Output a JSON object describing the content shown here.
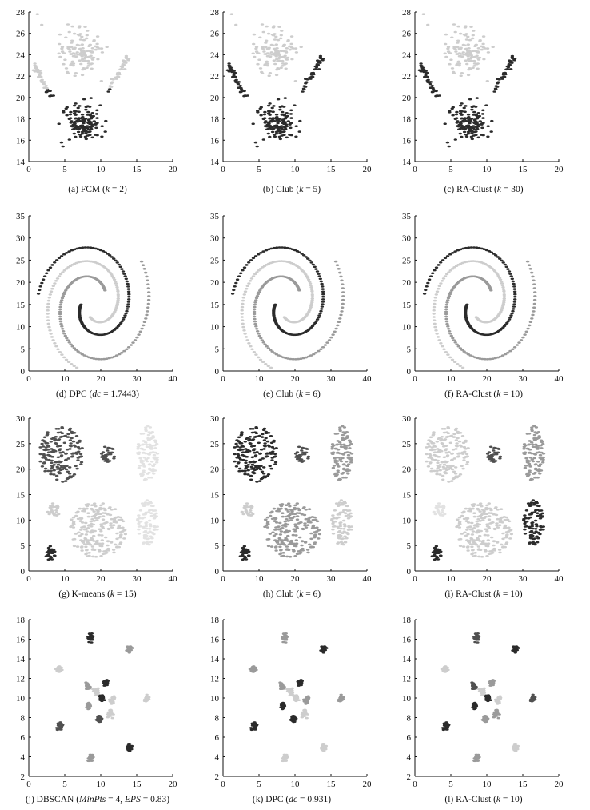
{
  "colors": {
    "black": "#2b2b2b",
    "dark": "#505050",
    "mid": "#9a9a9a",
    "light": "#cdcdcd",
    "lighter": "#e2e2e2",
    "axis": "#111111"
  },
  "chart_data": [
    {
      "id": "a",
      "type": "scatter",
      "caption": "(a) FCM (k = 2)",
      "caption_parts": [
        "(a) FCM (",
        "k",
        " = 2)"
      ],
      "xlim": [
        0,
        20
      ],
      "ylim": [
        14,
        28
      ],
      "xticks": [
        0,
        5,
        10,
        15,
        20
      ],
      "yticks": [
        14,
        16,
        18,
        20,
        22,
        24,
        26,
        28
      ],
      "dataset": "flame",
      "scheme": "fcm",
      "cluster_colors": [
        "light",
        "black"
      ]
    },
    {
      "id": "b",
      "type": "scatter",
      "caption": "(b) Club (k = 5)",
      "caption_parts": [
        "(b) Club (",
        "k",
        " = 5)"
      ],
      "xlim": [
        0,
        20
      ],
      "ylim": [
        14,
        28
      ],
      "xticks": [
        0,
        5,
        10,
        15,
        20
      ],
      "yticks": [
        14,
        16,
        18,
        20,
        22,
        24,
        26,
        28
      ],
      "dataset": "flame",
      "scheme": "true",
      "cluster_colors": [
        "light",
        "black"
      ]
    },
    {
      "id": "c",
      "type": "scatter",
      "caption": "(c) RA-Clust (k = 30)",
      "caption_parts": [
        "(c) RA-Clust (",
        "k",
        " = 30)"
      ],
      "xlim": [
        0,
        20
      ],
      "ylim": [
        14,
        28
      ],
      "xticks": [
        0,
        5,
        10,
        15,
        20
      ],
      "yticks": [
        14,
        16,
        18,
        20,
        22,
        24,
        26,
        28
      ],
      "dataset": "flame",
      "scheme": "true",
      "cluster_colors": [
        "light",
        "black"
      ]
    },
    {
      "id": "d",
      "type": "scatter",
      "caption": "(d) DPC (dc = 1.7443)",
      "caption_parts": [
        "(d) DPC (",
        "dc",
        " = 1.7443)"
      ],
      "xlim": [
        0,
        40
      ],
      "ylim": [
        0,
        35
      ],
      "xticks": [
        0,
        10,
        20,
        30,
        40
      ],
      "yticks": [
        0,
        5,
        10,
        15,
        20,
        25,
        30,
        35
      ],
      "dataset": "spiral",
      "scheme": "dpc",
      "cluster_colors": [
        "black",
        "mid",
        "light"
      ]
    },
    {
      "id": "e",
      "type": "scatter",
      "caption": "(e) Club (k = 6)",
      "caption_parts": [
        "(e) Club (",
        "k",
        " = 6)"
      ],
      "xlim": [
        0,
        40
      ],
      "ylim": [
        0,
        35
      ],
      "xticks": [
        0,
        10,
        20,
        30,
        40
      ],
      "yticks": [
        0,
        5,
        10,
        15,
        20,
        25,
        30,
        35
      ],
      "dataset": "spiral",
      "scheme": "true",
      "cluster_colors": [
        "black",
        "mid",
        "light"
      ]
    },
    {
      "id": "f",
      "type": "scatter",
      "caption": "(f) RA-Clust (k = 10)",
      "caption_parts": [
        "(f) RA-Clust (",
        "k",
        " = 10)"
      ],
      "xlim": [
        0,
        40
      ],
      "ylim": [
        0,
        35
      ],
      "xticks": [
        0,
        10,
        20,
        30,
        40
      ],
      "yticks": [
        0,
        5,
        10,
        15,
        20,
        25,
        30,
        35
      ],
      "dataset": "spiral",
      "scheme": "true",
      "cluster_colors": [
        "black",
        "mid",
        "light"
      ]
    },
    {
      "id": "g",
      "type": "scatter",
      "caption": "(g) K-means (k = 15)",
      "caption_parts": [
        "(g) K-means (",
        "k",
        " = 15)"
      ],
      "xlim": [
        0,
        40
      ],
      "ylim": [
        0,
        30
      ],
      "xticks": [
        0,
        10,
        20,
        30,
        40
      ],
      "yticks": [
        0,
        5,
        10,
        15,
        20,
        25,
        30
      ],
      "dataset": "compound",
      "scheme": "kmeans",
      "cluster_colors": [
        "dark",
        "dark",
        "lighter",
        "lighter",
        "light",
        "light",
        "black"
      ]
    },
    {
      "id": "h",
      "type": "scatter",
      "caption": "(h) Club (k = 6)",
      "caption_parts": [
        "(h) Club (",
        "k",
        " = 6)"
      ],
      "xlim": [
        0,
        40
      ],
      "ylim": [
        0,
        30
      ],
      "xticks": [
        0,
        10,
        20,
        30,
        40
      ],
      "yticks": [
        0,
        5,
        10,
        15,
        20,
        25,
        30
      ],
      "dataset": "compound",
      "scheme": "club",
      "cluster_colors": [
        "black",
        "dark",
        "mid",
        "light",
        "mid",
        "light",
        "black"
      ]
    },
    {
      "id": "i",
      "type": "scatter",
      "caption": "(i) RA-Clust (k = 10)",
      "caption_parts": [
        "(i) RA-Clust (",
        "k",
        " = 10)"
      ],
      "xlim": [
        0,
        40
      ],
      "ylim": [
        0,
        30
      ],
      "xticks": [
        0,
        10,
        20,
        30,
        40
      ],
      "yticks": [
        0,
        5,
        10,
        15,
        20,
        25,
        30
      ],
      "dataset": "compound",
      "scheme": "raclust",
      "cluster_colors": [
        "light",
        "dark",
        "mid",
        "black",
        "light",
        "lighter",
        "black"
      ]
    },
    {
      "id": "j",
      "type": "scatter",
      "caption": "(j) DBSCAN (MinPts = 4, EPS = 0.83)",
      "caption_parts": [
        "(j) DBSCAN (",
        "MinPts",
        " = 4, ",
        "EPS",
        " = 0.83)"
      ],
      "xlim": [
        0,
        20
      ],
      "ylim": [
        2,
        18
      ],
      "xticks": [
        0,
        5,
        10,
        15,
        20
      ],
      "yticks": [
        2,
        4,
        6,
        8,
        10,
        12,
        14,
        16,
        18
      ],
      "dataset": "r15",
      "scheme": "dbscan",
      "cluster_colors": [
        "dark",
        "mid",
        "light",
        "black",
        "mid",
        "light",
        "black",
        "mid",
        "black",
        "light",
        "light",
        "dark",
        "black",
        "light",
        "mid"
      ]
    },
    {
      "id": "k",
      "type": "scatter",
      "caption": "(k) DPC (dc = 0.931)",
      "caption_parts": [
        "(k) DPC (",
        "dc",
        " = 0.931)"
      ],
      "xlim": [
        0,
        20
      ],
      "ylim": [
        2,
        18
      ],
      "xticks": [
        0,
        5,
        10,
        15,
        20
      ],
      "yticks": [
        2,
        4,
        6,
        8,
        10,
        12,
        14,
        16,
        18
      ],
      "dataset": "r15",
      "scheme": "dpc",
      "cluster_colors": [
        "black",
        "light",
        "mid",
        "mid",
        "black",
        "mid",
        "light",
        "black",
        "black",
        "mid",
        "light",
        "black",
        "light",
        "light",
        "mid"
      ]
    },
    {
      "id": "l",
      "type": "scatter",
      "caption": "(l) RA-Clust (k = 10)",
      "caption_parts": [
        "(l) RA-Clust (",
        "k",
        " = 10)"
      ],
      "xlim": [
        0,
        20
      ],
      "ylim": [
        2,
        18
      ],
      "xticks": [
        0,
        5,
        10,
        15,
        20
      ],
      "yticks": [
        2,
        4,
        6,
        8,
        10,
        12,
        14,
        16,
        18
      ],
      "dataset": "r15",
      "scheme": "raclust",
      "cluster_colors": [
        "black",
        "mid",
        "light",
        "dark",
        "black",
        "dark",
        "light",
        "black",
        "mid",
        "light",
        "light",
        "mid",
        "black",
        "mid",
        "dark"
      ]
    }
  ]
}
